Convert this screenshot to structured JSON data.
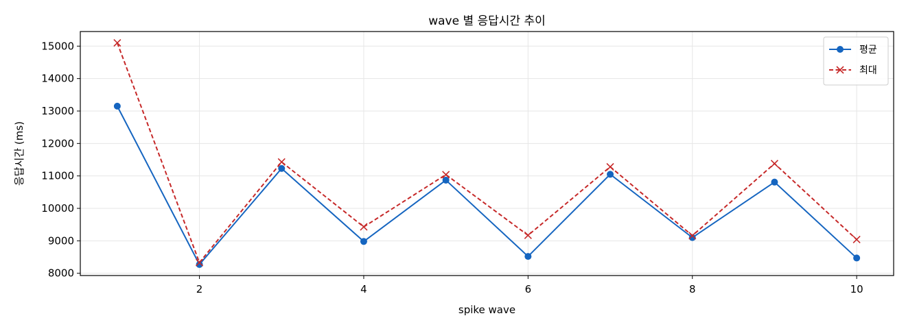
{
  "chart_data": {
    "type": "line",
    "title": "wave 별 응답시간 추이",
    "xlabel": "spike wave",
    "ylabel": "응답시간 (ms)",
    "x": [
      1,
      2,
      3,
      4,
      5,
      6,
      7,
      8,
      9,
      10
    ],
    "xlim": [
      0.55,
      10.45
    ],
    "ylim": [
      7930,
      15450
    ],
    "xticks": [
      2,
      4,
      6,
      8,
      10
    ],
    "yticks": [
      8000,
      9000,
      10000,
      11000,
      12000,
      13000,
      14000,
      15000
    ],
    "grid": true,
    "legend_position": "top-right",
    "series": [
      {
        "name": "평균",
        "marker": "circle",
        "line_style": "solid",
        "color": "#1565c0",
        "values": [
          13150,
          8270,
          11230,
          8980,
          10870,
          8520,
          11050,
          9100,
          10810,
          8470
        ]
      },
      {
        "name": "최대",
        "marker": "x",
        "line_style": "dashed",
        "color": "#c62828",
        "values": [
          15100,
          8330,
          11430,
          9430,
          11040,
          9170,
          11280,
          9160,
          11380,
          9040
        ]
      }
    ]
  }
}
